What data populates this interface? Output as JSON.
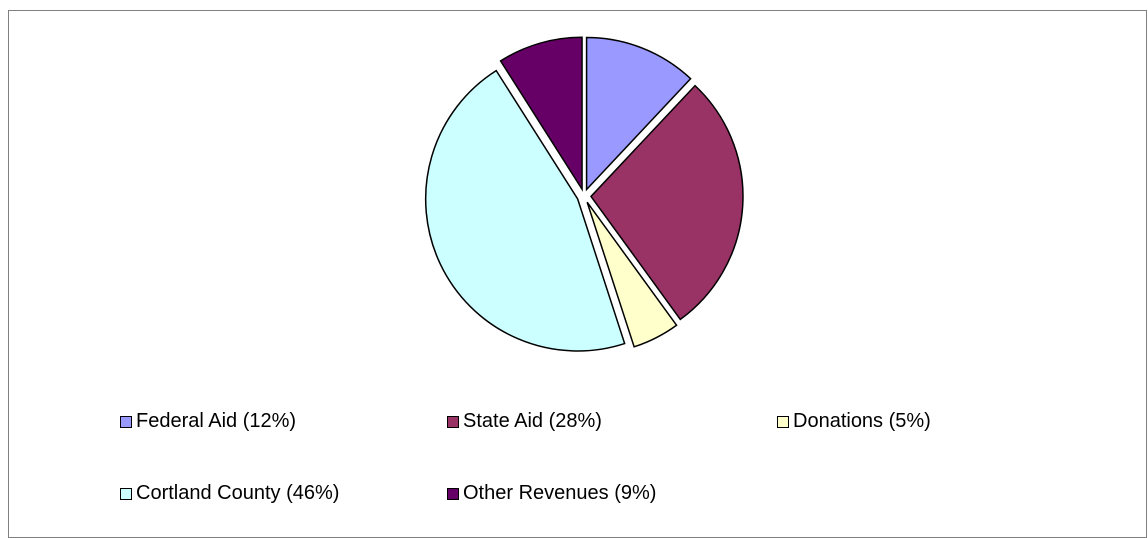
{
  "chart_data": {
    "type": "pie",
    "title": "",
    "categories": [
      "Federal Aid",
      "State Aid",
      "Donations",
      "Cortland County",
      "Other Revenues"
    ],
    "values": [
      12,
      28,
      5,
      46,
      9
    ],
    "legend_labels": [
      "Federal Aid (12%)",
      "State Aid (28%)",
      "Donations (5%)",
      "Cortland County (46%)",
      "Other Revenues (9%)"
    ],
    "colors": [
      "#9999ff",
      "#993366",
      "#ffffcc",
      "#ccffff",
      "#660066"
    ],
    "exploded": true,
    "legend_position": "bottom"
  }
}
